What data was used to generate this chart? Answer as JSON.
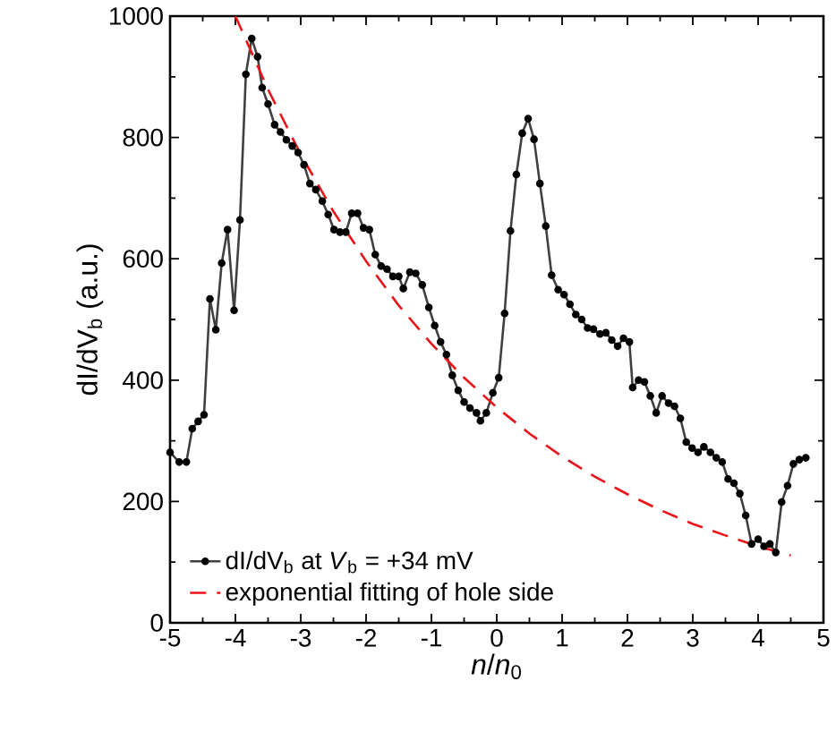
{
  "chart_data": {
    "type": "line",
    "xlabel": "*n*/*n*$_{0}$",
    "ylabel": "dI/dV$_{b}$ (a.u.)",
    "xlim": [
      -5,
      5
    ],
    "ylim": [
      0,
      1000
    ],
    "xticks": [
      -5,
      -4,
      -3,
      -2,
      -1,
      0,
      1,
      2,
      3,
      4,
      5
    ],
    "yticks": [
      0,
      200,
      400,
      600,
      800,
      1000
    ],
    "legend": "bottom left",
    "series": [
      {
        "name": "dI/dV$_{b}$ at *V*$_{b}$ = +34 mV",
        "color": "#404040",
        "marker": "circle",
        "line_style": "solid",
        "x": [
          -5.0,
          -4.86,
          -4.75,
          -4.66,
          -4.57,
          -4.48,
          -4.39,
          -4.3,
          -4.21,
          -4.12,
          -4.02,
          -3.93,
          -3.84,
          -3.75,
          -3.66,
          -3.59,
          -3.5,
          -3.4,
          -3.31,
          -3.22,
          -3.13,
          -3.04,
          -2.95,
          -2.86,
          -2.77,
          -2.67,
          -2.58,
          -2.49,
          -2.4,
          -2.31,
          -2.22,
          -2.13,
          -2.04,
          -1.95,
          -1.86,
          -1.77,
          -1.68,
          -1.59,
          -1.5,
          -1.43,
          -1.33,
          -1.24,
          -1.14,
          -1.04,
          -0.95,
          -0.86,
          -0.77,
          -0.68,
          -0.59,
          -0.5,
          -0.41,
          -0.31,
          -0.25,
          -0.16,
          -0.06,
          0.03,
          0.12,
          0.21,
          0.3,
          0.39,
          0.48,
          0.57,
          0.66,
          0.75,
          0.84,
          0.94,
          1.03,
          1.12,
          1.21,
          1.3,
          1.39,
          1.48,
          1.58,
          1.67,
          1.76,
          1.85,
          1.94,
          2.03,
          2.08,
          2.17,
          2.26,
          2.35,
          2.44,
          2.53,
          2.63,
          2.72,
          2.81,
          2.9,
          2.99,
          3.08,
          3.17,
          3.27,
          3.36,
          3.45,
          3.54,
          3.63,
          3.72,
          3.81,
          3.9,
          4.0,
          4.09,
          4.18,
          4.27,
          4.36,
          4.45,
          4.54,
          4.63,
          4.73
        ],
        "values": [
          281,
          265,
          265,
          320,
          332,
          343,
          534,
          483,
          593,
          648,
          515,
          664,
          904,
          963,
          933,
          882,
          855,
          821,
          809,
          796,
          786,
          775,
          755,
          724,
          714,
          695,
          673,
          648,
          644,
          644,
          675,
          675,
          651,
          648,
          607,
          588,
          583,
          571,
          571,
          551,
          578,
          576,
          557,
          520,
          490,
          463,
          442,
          408,
          383,
          364,
          354,
          346,
          333,
          346,
          379,
          404,
          510,
          646,
          739,
          807,
          831,
          797,
          724,
          654,
          573,
          549,
          541,
          525,
          508,
          500,
          486,
          484,
          476,
          478,
          466,
          456,
          469,
          463,
          388,
          400,
          397,
          374,
          346,
          374,
          362,
          357,
          337,
          298,
          288,
          281,
          290,
          281,
          272,
          265,
          237,
          230,
          213,
          177,
          130,
          138,
          126,
          130,
          116,
          199,
          226,
          262,
          269,
          272
        ]
      },
      {
        "name": "exponential fitting of hole side",
        "color": "#e8141a",
        "marker": "none",
        "line_style": "dashed",
        "x": [
          -4,
          -3.5,
          -3,
          -2.5,
          -2,
          -1.5,
          -1,
          -0.5,
          0,
          0.5,
          1,
          1.5,
          2,
          2.5,
          3,
          3.5,
          4,
          4.5
        ],
        "values": [
          1000,
          879,
          772,
          678,
          596,
          523,
          460,
          404,
          355,
          312,
          274,
          241,
          212,
          186,
          163,
          144,
          126,
          111
        ]
      }
    ]
  }
}
